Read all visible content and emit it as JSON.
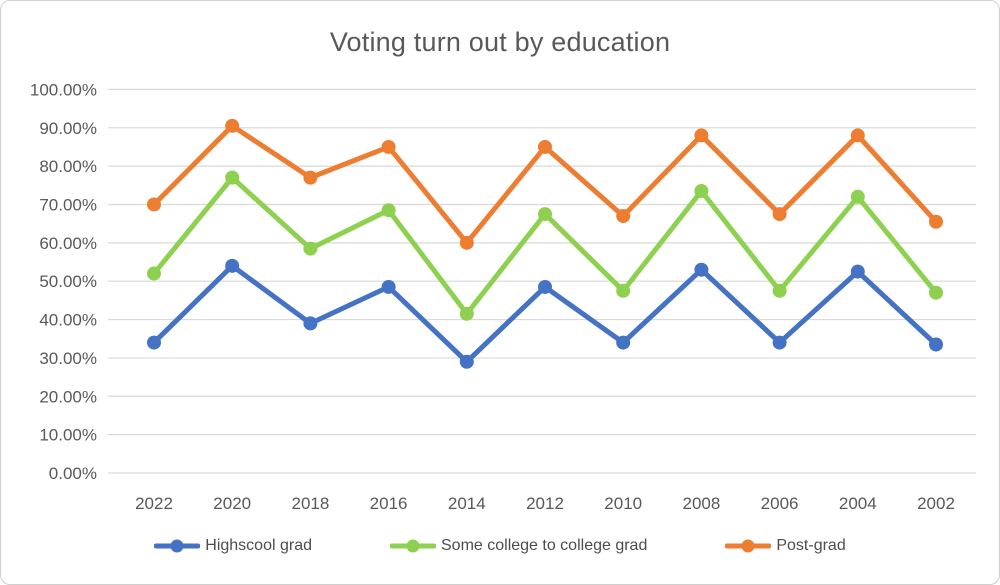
{
  "window": {
    "background": "#ffffff",
    "border_color": "#cfcfcf"
  },
  "chart_data": {
    "type": "line",
    "title": "Voting turn out by education",
    "categories": [
      "2022",
      "2020",
      "2018",
      "2016",
      "2014",
      "2012",
      "2010",
      "2008",
      "2006",
      "2004",
      "2002"
    ],
    "series": [
      {
        "name": "Highscool grad",
        "color": "#4472C4",
        "values": [
          34,
          54,
          39,
          48.5,
          29,
          48.5,
          34,
          53,
          34,
          52.5,
          33.5
        ]
      },
      {
        "name": "Some college to college grad",
        "color": "#8ED04F",
        "values": [
          52,
          77,
          58.5,
          68.5,
          41.5,
          67.5,
          47.5,
          73.5,
          47.5,
          72,
          47
        ]
      },
      {
        "name": "Post-grad",
        "color": "#ED7D31",
        "values": [
          70,
          90.5,
          77,
          85,
          60,
          85,
          67,
          88,
          67.5,
          88,
          65.5
        ]
      }
    ],
    "ylim": [
      0,
      100
    ],
    "ytick_step": 10,
    "ytick_labels": [
      "100.00%",
      "90.00%",
      "80.00%",
      "70.00%",
      "60.00%",
      "50.00%",
      "40.00%",
      "30.00%",
      "20.00%",
      "10.00%",
      "0.00%"
    ],
    "xlabel": "",
    "ylabel": "",
    "grid": true,
    "legend_position": "bottom",
    "text_color": "#595959",
    "grid_color": "#D9D9D9",
    "line_width": 5,
    "marker_radius": 7
  }
}
